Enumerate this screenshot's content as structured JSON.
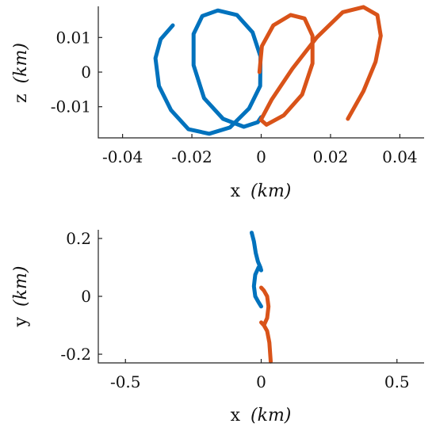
{
  "chart_data": [
    {
      "type": "line",
      "xlabel": "x (km)",
      "ylabel": "z (km)",
      "xlabel_parts": {
        "name": "x",
        "unit": "(km)"
      },
      "ylabel_parts": {
        "name": "z",
        "unit": "(km)"
      },
      "xlim": [
        -0.047,
        0.047
      ],
      "ylim": [
        -0.019,
        0.019
      ],
      "xticks": [
        -0.04,
        -0.02,
        0,
        0.02,
        0.04
      ],
      "xtick_labels": [
        "-0.04",
        "-0.02",
        "0",
        "0.02",
        "0.04"
      ],
      "yticks": [
        0.01,
        0,
        -0.01
      ],
      "ytick_labels": [
        "0.01",
        "0",
        "-0.01"
      ],
      "grid": false,
      "series": [
        {
          "color": "#0072BD",
          "x": [
            -0.0255,
            -0.029,
            -0.0305,
            -0.0295,
            -0.026,
            -0.021,
            -0.015,
            -0.009,
            -0.0035,
            -0.0003,
            -0.0002,
            -0.0025,
            -0.007,
            -0.0125,
            -0.017,
            -0.0195,
            -0.0195,
            -0.0165,
            -0.011,
            -0.005,
            -0.001,
            0.0
          ],
          "y": [
            0.0135,
            0.0095,
            0.004,
            -0.004,
            -0.011,
            -0.0165,
            -0.0178,
            -0.016,
            -0.0105,
            -0.004,
            0.0045,
            0.0115,
            0.0165,
            0.0178,
            0.0162,
            0.011,
            0.002,
            -0.0075,
            -0.0135,
            -0.0158,
            -0.0145,
            -0.013
          ]
        },
        {
          "color": "#D95319",
          "x": [
            -0.0005,
            0.0002,
            0.0035,
            0.0085,
            0.0125,
            0.0148,
            0.0148,
            0.0118,
            0.0065,
            0.0015,
            -0.0001,
            0.003,
            0.009,
            0.016,
            0.0235,
            0.0295,
            0.0335,
            0.0345,
            0.033,
            0.0295,
            0.025
          ],
          "y": [
            0.0,
            0.0075,
            0.0135,
            0.0165,
            0.0155,
            0.0105,
            0.0025,
            -0.0065,
            -0.0125,
            -0.0152,
            -0.0138,
            -0.008,
            0.001,
            0.01,
            0.0173,
            0.0188,
            0.0165,
            0.0105,
            0.003,
            -0.0055,
            -0.0135
          ]
        }
      ]
    },
    {
      "type": "line",
      "xlabel": "x (km)",
      "ylabel": "y (km)",
      "xlabel_parts": {
        "name": "x",
        "unit": "(km)"
      },
      "ylabel_parts": {
        "name": "y",
        "unit": "(km)"
      },
      "xlim": [
        -0.6,
        0.6
      ],
      "ylim": [
        -0.23,
        0.23
      ],
      "xticks": [
        -0.5,
        0,
        0.5
      ],
      "xtick_labels": [
        "-0.5",
        "0",
        "0.5"
      ],
      "yticks": [
        0.2,
        0,
        -0.2
      ],
      "ytick_labels": [
        "0.2",
        "0",
        "-0.2"
      ],
      "grid": false,
      "series": [
        {
          "color": "#0072BD",
          "x": [
            -0.035,
            -0.027,
            -0.02,
            -0.012,
            -0.003,
            0.0,
            -0.01,
            -0.022,
            -0.027,
            -0.022,
            -0.01,
            0.0
          ],
          "y": [
            0.22,
            0.19,
            0.15,
            0.12,
            0.1,
            0.09,
            0.1,
            0.075,
            0.035,
            0.0,
            -0.02,
            -0.035
          ]
        },
        {
          "color": "#D95319",
          "x": [
            0.0,
            0.01,
            0.022,
            0.027,
            0.022,
            0.01,
            0.0,
            0.01,
            0.022,
            0.03,
            0.035
          ],
          "y": [
            0.03,
            0.02,
            0.0,
            -0.035,
            -0.075,
            -0.1,
            -0.09,
            -0.1,
            -0.12,
            -0.16,
            -0.225
          ]
        }
      ]
    }
  ]
}
